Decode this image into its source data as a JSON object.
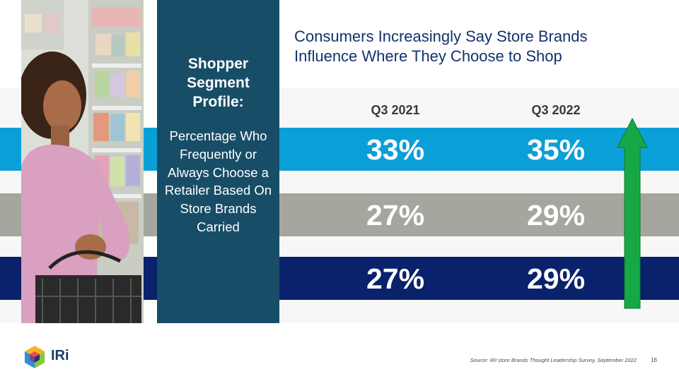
{
  "headline": "Consumers Increasingly Say Store Brands Influence Where They Choose to Shop",
  "profile": {
    "title": "Shopper Segment Profile:",
    "description": "Percentage Who Frequently or Always Choose a Retailer Based On Store Brands Carried"
  },
  "columns": [
    "Q3 2021",
    "Q3 2022"
  ],
  "rows": [
    {
      "q3_2021": "33%",
      "q3_2022": "35%",
      "color": "#0b9fd8"
    },
    {
      "q3_2021": "27%",
      "q3_2022": "29%",
      "color": "#a5a69e"
    },
    {
      "q3_2021": "27%",
      "q3_2022": "29%",
      "color": "#0a216b"
    }
  ],
  "arrow": {
    "icon": "up-arrow-icon",
    "color": "#16a844"
  },
  "logo": {
    "text": "IRi"
  },
  "source": "Source: IRI store Brands Thought Leadership Survey, September 2022",
  "page_number": "16"
}
